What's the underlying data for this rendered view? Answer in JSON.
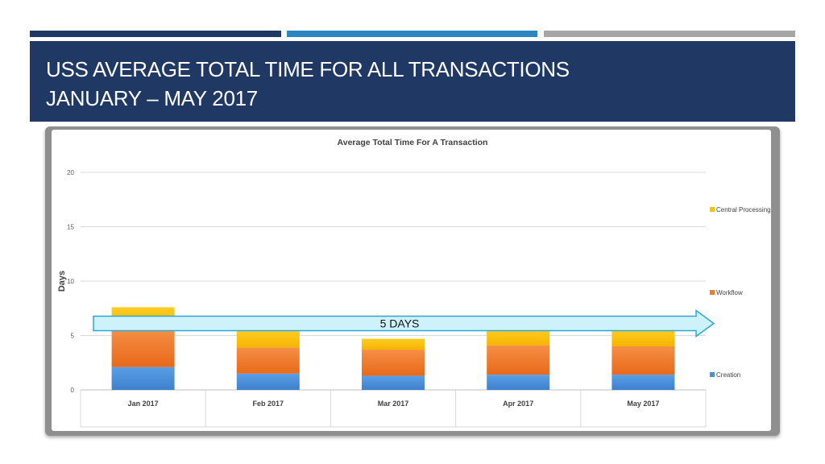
{
  "slide": {
    "title_line1": "USS AVERAGE TOTAL TIME FOR ALL TRANSACTIONS",
    "title_line2": "JANUARY – MAY 2017",
    "accent_colors": [
      "#1f3864",
      "#2e86c1",
      "#a6a6a6"
    ],
    "banner_color": "#1f3864"
  },
  "annotation": {
    "label": "5 DAYS",
    "value": 5,
    "fill": "#cdf2fb",
    "stroke": "#2aa7d4"
  },
  "chart_data": {
    "type": "bar",
    "stacked": true,
    "title": "Average Total Time For A Transaction",
    "ylabel": "Days",
    "xlabel": "",
    "ylim": [
      0,
      20
    ],
    "yticks": [
      0,
      5,
      10,
      15,
      20
    ],
    "grid": true,
    "legend_position": "right",
    "categories": [
      "Jan 2017",
      "Feb 2017",
      "Mar 2017",
      "Apr 2017",
      "May 2017"
    ],
    "series": [
      {
        "name": "Creation",
        "color": "#4a90d9",
        "values": [
          2.1,
          1.5,
          1.3,
          1.4,
          1.4
        ]
      },
      {
        "name": "Workflow",
        "color": "#f07b2c",
        "values": [
          3.5,
          2.4,
          2.4,
          2.7,
          2.6
        ]
      },
      {
        "name": "Central Processing",
        "color": "#ffc000",
        "values": [
          2.0,
          1.5,
          1.0,
          1.5,
          1.5
        ]
      }
    ],
    "legend_order": [
      "Central Processing",
      "Workflow",
      "Creation"
    ]
  }
}
